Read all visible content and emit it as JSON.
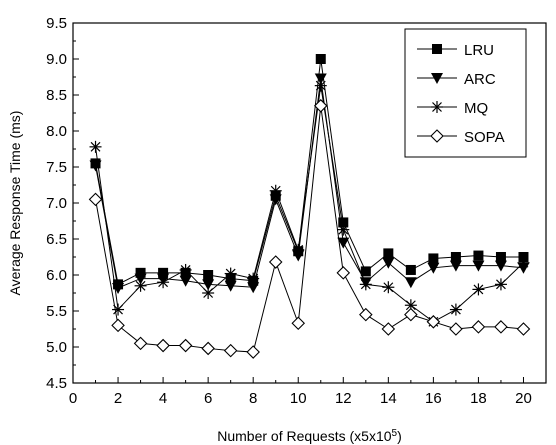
{
  "chart_data": {
    "type": "line",
    "xlabel": "Number of Requests (x5x10",
    "xlabel_sup": "5",
    "xlabel_suffix": ")",
    "ylabel": "Average Response Time (ms)",
    "xlim": [
      0,
      21
    ],
    "ylim": [
      4.5,
      9.5
    ],
    "x_ticks": [
      0,
      2,
      4,
      6,
      8,
      10,
      12,
      14,
      16,
      18,
      20
    ],
    "x_tick_labels": [
      "0",
      "2",
      "4",
      "6",
      "8",
      "10",
      "12",
      "14",
      "16",
      "18",
      "20"
    ],
    "y_ticks": [
      4.5,
      5.0,
      5.5,
      6.0,
      6.5,
      7.0,
      7.5,
      8.0,
      8.5,
      9.0,
      9.5
    ],
    "y_tick_labels": [
      "4.5",
      "5.0",
      "5.5",
      "6.0",
      "6.5",
      "7.0",
      "7.5",
      "8.0",
      "8.5",
      "9.0",
      "9.5"
    ],
    "grid": false,
    "legend_position": "top-right",
    "x": [
      1,
      2,
      3,
      4,
      5,
      6,
      7,
      8,
      9,
      10,
      11,
      12,
      13,
      14,
      15,
      16,
      17,
      18,
      19,
      20
    ],
    "series": [
      {
        "name": "LRU",
        "marker": "square-filled",
        "values": [
          7.55,
          5.87,
          6.03,
          6.03,
          6.03,
          6.0,
          5.95,
          5.92,
          7.1,
          6.33,
          9.0,
          6.73,
          6.05,
          6.3,
          6.07,
          6.23,
          6.25,
          6.27,
          6.25,
          6.25
        ]
      },
      {
        "name": "ARC",
        "marker": "triangle-down-filled",
        "values": [
          7.52,
          5.82,
          5.95,
          5.95,
          5.92,
          5.87,
          5.85,
          5.83,
          7.05,
          6.27,
          8.73,
          6.45,
          5.9,
          6.17,
          5.9,
          6.1,
          6.13,
          6.13,
          6.13,
          6.1
        ]
      },
      {
        "name": "MQ",
        "marker": "asterisk",
        "values": [
          7.78,
          5.52,
          5.85,
          5.9,
          6.07,
          5.75,
          6.02,
          5.95,
          7.17,
          6.35,
          8.63,
          6.63,
          5.87,
          5.83,
          5.58,
          5.35,
          5.52,
          5.8,
          5.87,
          6.17
        ]
      },
      {
        "name": "SOPA",
        "marker": "diamond-open",
        "values": [
          7.05,
          5.3,
          5.05,
          5.02,
          5.02,
          4.98,
          4.95,
          4.93,
          6.18,
          5.33,
          8.35,
          6.03,
          5.45,
          5.25,
          5.45,
          5.35,
          5.25,
          5.28,
          5.28,
          5.25
        ]
      }
    ]
  }
}
